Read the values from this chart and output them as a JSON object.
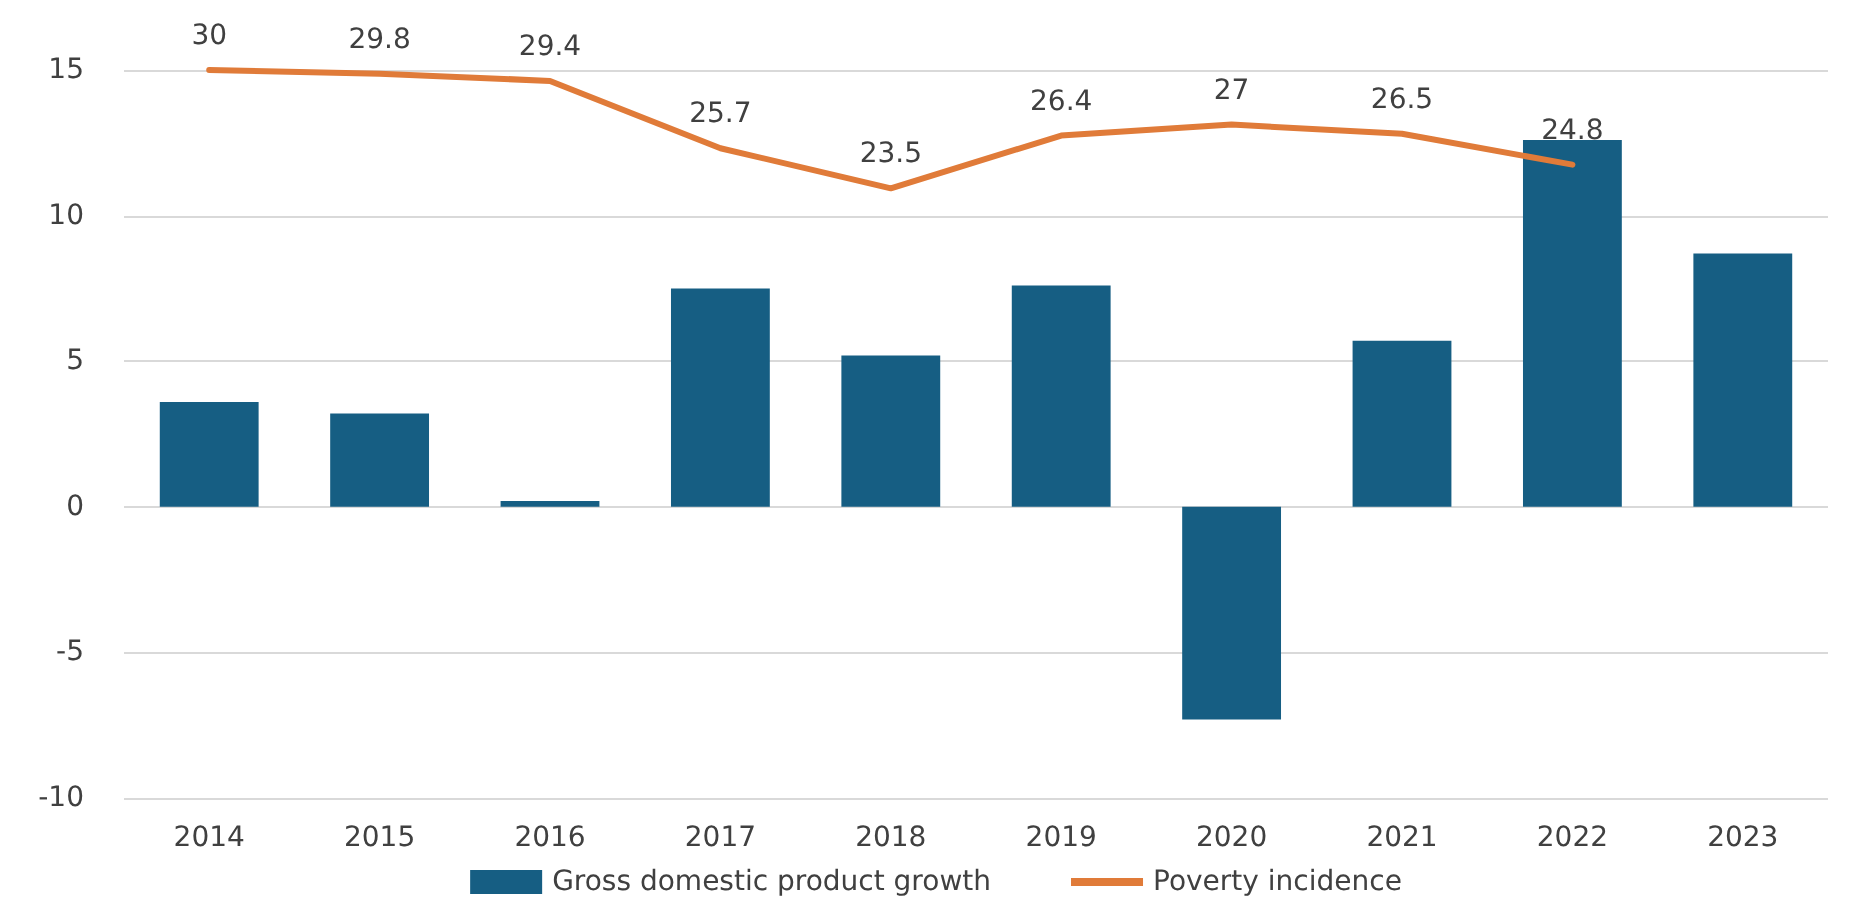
{
  "chart_data": {
    "type": "bar",
    "categories": [
      "2014",
      "2015",
      "2016",
      "2017",
      "2018",
      "2019",
      "2020",
      "2021",
      "2022",
      "2023"
    ],
    "series": [
      {
        "name": "Gross domestic product growth",
        "color": "#165e83",
        "values": [
          3.6,
          3.2,
          0.2,
          7.5,
          5.2,
          7.6,
          -7.3,
          5.7,
          12.6,
          8.7
        ]
      },
      {
        "name": "Poverty incidence",
        "type": "line",
        "axis": "y2",
        "color": "#e07b39",
        "marker": "none",
        "values": [
          30,
          29.8,
          29.4,
          25.7,
          23.5,
          26.4,
          27,
          26.5,
          24.8,
          null
        ],
        "value_labels": [
          "30",
          "29.8",
          "29.4",
          "25.7",
          "23.5",
          "26.4",
          "27",
          "26.5",
          "24.8",
          null
        ]
      }
    ],
    "ylim": [
      -10,
      15
    ],
    "yticks": [
      -10,
      -5,
      0,
      5,
      10,
      15
    ],
    "y2lim": [
      -10,
      30
    ],
    "grid": "y",
    "legend": "bottom"
  }
}
